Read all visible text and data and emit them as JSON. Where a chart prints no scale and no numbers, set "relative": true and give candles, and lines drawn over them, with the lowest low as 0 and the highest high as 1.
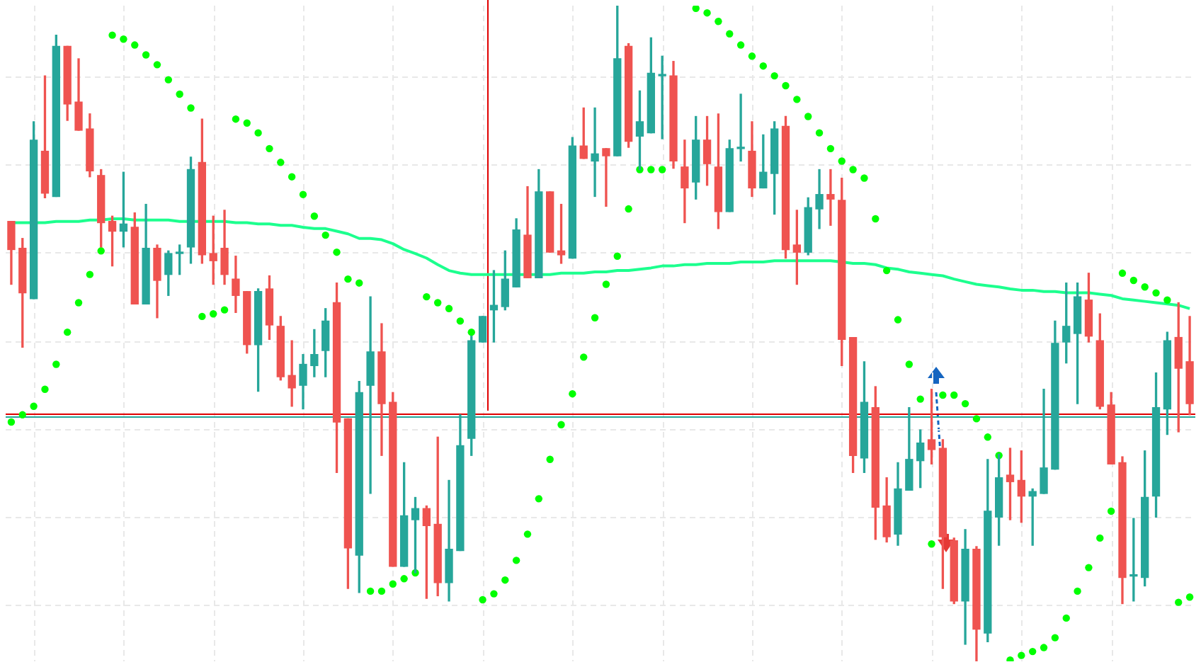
{
  "chart_data": {
    "type": "candlestick",
    "relative": true,
    "grid": true,
    "categories": [
      null,
      null,
      null,
      null,
      null,
      null,
      null,
      null,
      null,
      null,
      null,
      null,
      null,
      null,
      null,
      null,
      null,
      null,
      null,
      null,
      null,
      null,
      null,
      null,
      null,
      null,
      null,
      null,
      null,
      null,
      null,
      null,
      null,
      null,
      null,
      null,
      null,
      null,
      null,
      null,
      null,
      null,
      null,
      null,
      null,
      null,
      null,
      null,
      null,
      null,
      null,
      null,
      null,
      null,
      null,
      null,
      null,
      null,
      null,
      null,
      null,
      null,
      null,
      null,
      null,
      null,
      null,
      null,
      null,
      null,
      null,
      null,
      null,
      null,
      null,
      null,
      null,
      null,
      null,
      null,
      null,
      null,
      null,
      null,
      null,
      null,
      null,
      null,
      null,
      null,
      null,
      null,
      null,
      null,
      null,
      null,
      null,
      null,
      null,
      null,
      null,
      null,
      null,
      null,
      null,
      null
    ],
    "ohlc": [
      [
        0.671,
        0.671,
        0.575,
        0.628
      ],
      [
        0.63,
        0.645,
        0.479,
        0.562
      ],
      [
        0.553,
        0.823,
        0.553,
        0.795
      ],
      [
        0.778,
        0.893,
        0.707,
        0.714
      ],
      [
        0.709,
        0.955,
        0.709,
        0.938
      ],
      [
        0.938,
        0.938,
        0.825,
        0.85
      ],
      [
        0.853,
        0.919,
        0.81,
        0.81
      ],
      [
        0.812,
        0.835,
        0.739,
        0.748
      ],
      [
        0.741,
        0.75,
        0.632,
        0.669
      ],
      [
        0.671,
        0.679,
        0.603,
        0.656
      ],
      [
        0.656,
        0.746,
        0.632,
        0.667
      ],
      [
        0.662,
        0.684,
        0.545,
        0.545
      ],
      [
        0.545,
        0.697,
        0.545,
        0.63
      ],
      [
        0.63,
        0.635,
        0.524,
        0.581
      ],
      [
        0.59,
        0.626,
        0.558,
        0.622
      ],
      [
        0.622,
        0.635,
        0.59,
        0.622
      ],
      [
        0.632,
        0.769,
        0.607,
        0.75
      ],
      [
        0.761,
        0.827,
        0.607,
        0.62
      ],
      [
        0.622,
        0.679,
        0.575,
        0.611
      ],
      [
        0.63,
        0.688,
        0.575,
        0.59
      ],
      [
        0.583,
        0.618,
        0.532,
        0.558
      ],
      [
        0.564,
        0.564,
        0.47,
        0.483
      ],
      [
        0.483,
        0.568,
        0.412,
        0.564
      ],
      [
        0.568,
        0.588,
        0.491,
        0.513
      ],
      [
        0.511,
        0.526,
        0.429,
        0.434
      ],
      [
        0.436,
        0.489,
        0.389,
        0.417
      ],
      [
        0.421,
        0.468,
        0.385,
        0.453
      ],
      [
        0.451,
        0.506,
        0.434,
        0.468
      ],
      [
        0.474,
        0.538,
        0.434,
        0.519
      ],
      [
        0.547,
        0.577,
        0.288,
        0.365
      ],
      [
        0.37,
        0.37,
        0.111,
        0.173
      ],
      [
        0.162,
        0.427,
        0.105,
        0.41
      ],
      [
        0.421,
        0.556,
        0.256,
        0.472
      ],
      [
        0.472,
        0.515,
        0.314,
        0.393
      ],
      [
        0.395,
        0.41,
        0.145,
        0.145
      ],
      [
        0.145,
        0.303,
        0.145,
        0.222
      ],
      [
        0.216,
        0.25,
        0.135,
        0.233
      ],
      [
        0.233,
        0.237,
        0.096,
        0.207
      ],
      [
        0.209,
        0.342,
        0.1,
        0.12
      ],
      [
        0.12,
        0.276,
        0.092,
        0.171
      ],
      [
        0.169,
        0.376,
        0.169,
        0.329
      ],
      [
        0.34,
        0.496,
        0.314,
        0.489
      ],
      [
        0.487,
        0.526,
        0.487,
        0.526
      ],
      [
        0.536,
        0.596,
        0.487,
        0.543
      ],
      [
        0.541,
        0.626,
        0.536,
        0.583
      ],
      [
        0.571,
        0.675,
        0.571,
        0.658
      ],
      [
        0.65,
        0.724,
        0.585,
        0.585
      ],
      [
        0.585,
        0.75,
        0.585,
        0.716
      ],
      [
        0.716,
        0.716,
        0.624,
        0.624
      ],
      [
        0.626,
        0.697,
        0.607,
        0.62
      ],
      [
        0.615,
        0.799,
        0.615,
        0.786
      ],
      [
        0.786,
        0.844,
        0.767,
        0.767
      ],
      [
        0.763,
        0.844,
        0.709,
        0.774
      ],
      [
        0.782,
        0.782,
        0.694,
        0.771
      ],
      [
        0.771,
        1,
        0.771,
        0.919
      ],
      [
        0.938,
        0.942,
        0.784,
        0.793
      ],
      [
        0.801,
        0.87,
        0.75,
        0.823
      ],
      [
        0.806,
        0.951,
        0.806,
        0.897
      ],
      [
        0.893,
        0.923,
        0.797,
        0.893
      ],
      [
        0.893,
        0.915,
        0.752,
        0.763
      ],
      [
        0.754,
        0.795,
        0.669,
        0.722
      ],
      [
        0.731,
        0.831,
        0.705,
        0.795
      ],
      [
        0.795,
        0.831,
        0.726,
        0.759
      ],
      [
        0.754,
        0.835,
        0.66,
        0.686
      ],
      [
        0.686,
        0.795,
        0.686,
        0.782
      ],
      [
        0.782,
        0.865,
        0.763,
        0.782
      ],
      [
        0.778,
        0.823,
        0.709,
        0.722
      ],
      [
        0.722,
        0.803,
        0.722,
        0.746
      ],
      [
        0.744,
        0.823,
        0.682,
        0.812
      ],
      [
        0.816,
        0.831,
        0.615,
        0.628
      ],
      [
        0.635,
        0.688,
        0.575,
        0.624
      ],
      [
        0.624,
        0.707,
        0.62,
        0.692
      ],
      [
        0.69,
        0.75,
        0.66,
        0.712
      ],
      [
        0.712,
        0.75,
        0.665,
        0.705
      ],
      [
        0.703,
        0.737,
        0.451,
        0.491
      ],
      [
        0.494,
        0.494,
        0.288,
        0.314
      ],
      [
        0.31,
        0.457,
        0.288,
        0.395
      ],
      [
        0.387,
        0.419,
        0.186,
        0.235
      ],
      [
        0.237,
        0.28,
        0.182,
        0.19
      ],
      [
        0.194,
        0.303,
        0.177,
        0.263
      ],
      [
        0.261,
        0.387,
        0.261,
        0.308
      ],
      [
        0.306,
        0.353,
        0.265,
        0.333
      ],
      [
        0.338,
        0.415,
        0.301,
        0.323
      ],
      [
        0.325,
        0.338,
        0.111,
        0.19
      ],
      [
        0.184,
        0.188,
        0.088,
        0.092
      ],
      [
        0.092,
        0.201,
        0.026,
        0.171
      ],
      [
        0.171,
        0.175,
        0,
        0.049
      ],
      [
        0.043,
        0.308,
        0.03,
        0.229
      ],
      [
        0.22,
        0.316,
        0.177,
        0.28
      ],
      [
        0.284,
        0.325,
        0.216,
        0.274
      ],
      [
        0.276,
        0.321,
        0.212,
        0.252
      ],
      [
        0.252,
        0.263,
        0.177,
        0.259
      ],
      [
        0.256,
        0.415,
        0.256,
        0.295
      ],
      [
        0.293,
        0.519,
        0.293,
        0.485
      ],
      [
        0.487,
        0.577,
        0.455,
        0.511
      ],
      [
        0.5,
        0.577,
        0.393,
        0.556
      ],
      [
        0.551,
        0.592,
        0.487,
        0.496
      ],
      [
        0.489,
        0.53,
        0.385,
        0.389
      ],
      [
        0.391,
        0.41,
        0.301,
        0.301
      ],
      [
        0.303,
        0.312,
        0.088,
        0.128
      ],
      [
        0.13,
        0.218,
        0.092,
        0.13
      ],
      [
        0.128,
        0.321,
        0.115,
        0.25
      ],
      [
        0.252,
        0.44,
        0.22,
        0.387
      ],
      [
        0.385,
        0.502,
        0.346,
        0.489
      ],
      [
        0.494,
        0.547,
        0.35,
        0.447
      ],
      [
        0.457,
        0.526,
        0.376,
        0.393
      ]
    ],
    "colors": [
      "#ef5350",
      "#ef5350",
      "#26a69a",
      "#ef5350",
      "#26a69a",
      "#ef5350",
      "#ef5350",
      "#ef5350",
      "#ef5350",
      "#ef5350",
      "#26a69a",
      "#ef5350",
      "#26a69a",
      "#ef5350",
      "#26a69a",
      "#26a69a",
      "#26a69a",
      "#ef5350",
      "#ef5350",
      "#ef5350",
      "#ef5350",
      "#ef5350",
      "#26a69a",
      "#ef5350",
      "#ef5350",
      "#ef5350",
      "#26a69a",
      "#26a69a",
      "#26a69a",
      "#ef5350",
      "#ef5350",
      "#26a69a",
      "#26a69a",
      "#ef5350",
      "#ef5350",
      "#26a69a",
      "#26a69a",
      "#ef5350",
      "#ef5350",
      "#26a69a",
      "#26a69a",
      "#26a69a",
      "#26a69a",
      "#26a69a",
      "#26a69a",
      "#26a69a",
      "#ef5350",
      "#26a69a",
      "#ef5350",
      "#ef5350",
      "#26a69a",
      "#ef5350",
      "#26a69a",
      "#ef5350",
      "#26a69a",
      "#ef5350",
      "#26a69a",
      "#26a69a",
      "#26a69a",
      "#ef5350",
      "#ef5350",
      "#26a69a",
      "#ef5350",
      "#ef5350",
      "#26a69a",
      "#26a69a",
      "#ef5350",
      "#26a69a",
      "#26a69a",
      "#ef5350",
      "#ef5350",
      "#26a69a",
      "#26a69a",
      "#ef5350",
      "#ef5350",
      "#ef5350",
      "#26a69a",
      "#ef5350",
      "#ef5350",
      "#26a69a",
      "#26a69a",
      "#26a69a",
      "#ef5350",
      "#ef5350",
      "#ef5350",
      "#26a69a",
      "#ef5350",
      "#26a69a",
      "#26a69a",
      "#ef5350",
      "#ef5350",
      "#26a69a",
      "#26a69a",
      "#26a69a",
      "#26a69a",
      "#26a69a",
      "#ef5350",
      "#ef5350",
      "#ef5350",
      "#ef5350",
      "#26a69a",
      "#26a69a",
      "#26a69a",
      "#26a69a",
      "#ef5350",
      "#ef5350"
    ],
    "series": [
      {
        "type": "scatter",
        "color": "#00ff00",
        "marker": "circle",
        "values": [
          0.365,
          0.376,
          0.389,
          0.415,
          0.453,
          0.502,
          0.547,
          0.59,
          0.626,
          0.955,
          0.949,
          0.94,
          0.925,
          0.91,
          0.887,
          0.865,
          0.844,
          0.526,
          0.53,
          0.536,
          0.827,
          0.821,
          0.806,
          0.782,
          0.761,
          0.739,
          0.712,
          0.679,
          0.65,
          0.624,
          0.583,
          0.577,
          0.107,
          0.107,
          0.118,
          0.126,
          0.135,
          0.556,
          0.547,
          0.538,
          0.519,
          0.502,
          0.094,
          0.103,
          0.124,
          0.154,
          0.194,
          0.248,
          0.308,
          0.361,
          0.408,
          0.464,
          0.524,
          0.575,
          0.618,
          0.69,
          0.75,
          0.75,
          0.75,
          null,
          null,
          0.996,
          0.989,
          0.976,
          0.957,
          0.94,
          0.923,
          0.908,
          0.893,
          0.878,
          0.857,
          0.831,
          0.806,
          0.782,
          0.763,
          0.75,
          0.737,
          0.675,
          0.596,
          0.521,
          0.453,
          0.4,
          0.179,
          0.406,
          0.406,
          0.393,
          0.37,
          0.342,
          0.314,
          0.002,
          0.009,
          0.015,
          0.021,
          0.036,
          0.066,
          0.107,
          0.143,
          0.188,
          0.229,
          0.592,
          0.581,
          0.571,
          0.562,
          0.551,
          0.09,
          0.098
        ]
      },
      {
        "type": "line",
        "color": "#1cff8e",
        "values": [
          0.669,
          0.669,
          0.669,
          0.669,
          0.671,
          0.671,
          0.671,
          0.673,
          0.673,
          0.675,
          0.675,
          0.673,
          0.673,
          0.673,
          0.673,
          0.671,
          0.671,
          0.671,
          0.671,
          0.671,
          0.669,
          0.669,
          0.667,
          0.667,
          0.665,
          0.665,
          0.662,
          0.66,
          0.66,
          0.656,
          0.652,
          0.645,
          0.645,
          0.643,
          0.637,
          0.628,
          0.622,
          0.615,
          0.605,
          0.596,
          0.592,
          0.59,
          0.59,
          0.59,
          0.59,
          0.59,
          0.59,
          0.59,
          0.59,
          0.592,
          0.592,
          0.592,
          0.594,
          0.594,
          0.596,
          0.596,
          0.598,
          0.6,
          0.603,
          0.603,
          0.605,
          0.605,
          0.607,
          0.607,
          0.607,
          0.609,
          0.609,
          0.609,
          0.611,
          0.611,
          0.611,
          0.611,
          0.611,
          0.611,
          0.609,
          0.607,
          0.607,
          0.605,
          0.6,
          0.598,
          0.594,
          0.592,
          0.59,
          0.588,
          0.583,
          0.579,
          0.575,
          0.573,
          0.571,
          0.568,
          0.566,
          0.566,
          0.564,
          0.564,
          0.562,
          0.562,
          0.562,
          0.56,
          0.558,
          0.553,
          0.551,
          0.549,
          0.547,
          0.545,
          0.543,
          0.538
        ]
      }
    ],
    "ref_lines": [
      {
        "axis": "y",
        "value": 0.374,
        "color": "#26a69a"
      },
      {
        "axis": "y",
        "value": 0.378,
        "color": "#e00000"
      }
    ]
  }
}
